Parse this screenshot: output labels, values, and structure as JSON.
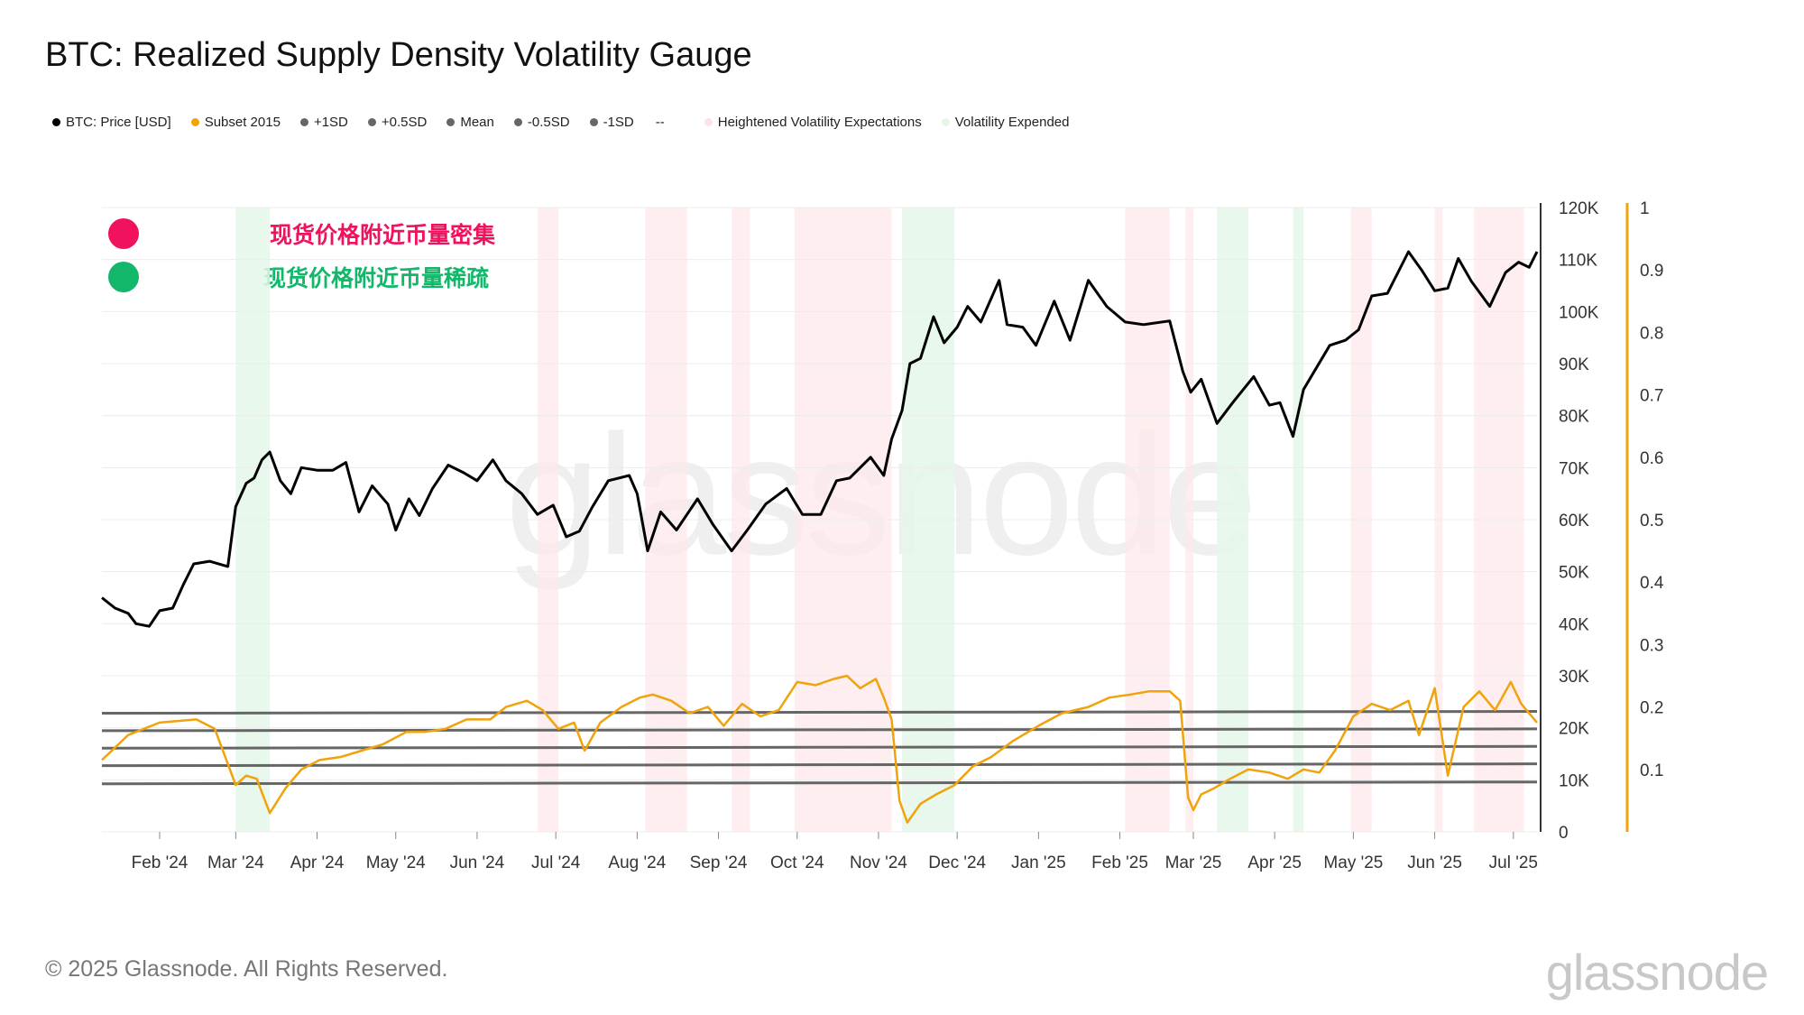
{
  "title": "BTC: Realized Supply Density Volatility Gauge",
  "legend": [
    {
      "label": "BTC: Price [USD]",
      "color": "#000000",
      "marker": "dot"
    },
    {
      "label": "Subset 2015",
      "color": "#f0a30a",
      "marker": "dot"
    },
    {
      "label": "+1SD",
      "color": "#666666",
      "marker": "dot"
    },
    {
      "label": "+0.5SD",
      "color": "#666666",
      "marker": "dot"
    },
    {
      "label": "Mean",
      "color": "#666666",
      "marker": "dot"
    },
    {
      "label": "-0.5SD",
      "color": "#666666",
      "marker": "dot"
    },
    {
      "label": "-1SD",
      "color": "#666666",
      "marker": "dot"
    },
    {
      "label": "--",
      "color": "#333333",
      "marker": "dash"
    },
    {
      "label": "Heightened Volatility Expectations",
      "color": "#fbe3e6",
      "marker": "dot"
    },
    {
      "label": "Volatility Expended",
      "color": "#e3f6e8",
      "marker": "dot"
    }
  ],
  "annotations": [
    {
      "text": "现货价格附近币量密集",
      "color": "#f0125e"
    },
    {
      "text": "现货价格附近币量稀疏",
      "color": "#12b76a"
    }
  ],
  "watermark": "glassnode",
  "footer": "© 2025 Glassnode. All Rights Reserved.",
  "brand": "glassnode",
  "chart_data": {
    "type": "line",
    "x_start": "2024-01-10",
    "x_end": "2025-07-10",
    "x_ticks": [
      "Feb '24",
      "Mar '24",
      "Apr '24",
      "May '24",
      "Jun '24",
      "Jul '24",
      "Aug '24",
      "Sep '24",
      "Oct '24",
      "Nov '24",
      "Dec '24",
      "Jan '25",
      "Feb '25",
      "Mar '25",
      "Apr '25",
      "May '25",
      "Jun '25",
      "Jul '25"
    ],
    "y_left": {
      "label": "BTC: Price [USD]",
      "ticks": [
        "0",
        "10K",
        "20K",
        "30K",
        "40K",
        "50K",
        "60K",
        "70K",
        "80K",
        "90K",
        "100K",
        "110K",
        "120K"
      ],
      "range": [
        0,
        120000
      ]
    },
    "y_right": {
      "label": "Subset 2015",
      "ticks": [
        "0.1",
        "0.2",
        "0.3",
        "0.4",
        "0.5",
        "0.6",
        "0.7",
        "0.8",
        "0.9",
        "1"
      ],
      "range": [
        0,
        1
      ]
    },
    "bands": {
      "+1SD": 0.19,
      "+0.5SD": 0.162,
      "Mean": 0.134,
      "-0.5SD": 0.106,
      "-1SD": 0.077
    },
    "series": [
      {
        "name": "BTC: Price [USD]",
        "dates": [
          "2024-01-10",
          "2024-01-15",
          "2024-01-20",
          "2024-01-23",
          "2024-01-28",
          "2024-02-01",
          "2024-02-06",
          "2024-02-10",
          "2024-02-14",
          "2024-02-20",
          "2024-02-27",
          "2024-03-01",
          "2024-03-05",
          "2024-03-08",
          "2024-03-11",
          "2024-03-14",
          "2024-03-18",
          "2024-03-22",
          "2024-03-26",
          "2024-04-01",
          "2024-04-07",
          "2024-04-12",
          "2024-04-17",
          "2024-04-22",
          "2024-04-28",
          "2024-05-01",
          "2024-05-06",
          "2024-05-10",
          "2024-05-15",
          "2024-05-21",
          "2024-05-27",
          "2024-06-01",
          "2024-06-07",
          "2024-06-12",
          "2024-06-18",
          "2024-06-24",
          "2024-06-30",
          "2024-07-05",
          "2024-07-10",
          "2024-07-15",
          "2024-07-21",
          "2024-07-29",
          "2024-08-01",
          "2024-08-05",
          "2024-08-10",
          "2024-08-16",
          "2024-08-24",
          "2024-08-30",
          "2024-09-06",
          "2024-09-12",
          "2024-09-19",
          "2024-09-27",
          "2024-10-03",
          "2024-10-10",
          "2024-10-16",
          "2024-10-21",
          "2024-10-29",
          "2024-11-03",
          "2024-11-06",
          "2024-11-10",
          "2024-11-13",
          "2024-11-17",
          "2024-11-22",
          "2024-11-26",
          "2024-12-01",
          "2024-12-05",
          "2024-12-10",
          "2024-12-17",
          "2024-12-20",
          "2024-12-26",
          "2024-12-31",
          "2025-01-07",
          "2025-01-13",
          "2025-01-20",
          "2025-01-27",
          "2025-02-03",
          "2025-02-10",
          "2025-02-20",
          "2025-02-25",
          "2025-02-28",
          "2025-03-04",
          "2025-03-10",
          "2025-03-16",
          "2025-03-24",
          "2025-03-30",
          "2025-04-03",
          "2025-04-08",
          "2025-04-12",
          "2025-04-22",
          "2025-04-28",
          "2025-05-03",
          "2025-05-08",
          "2025-05-14",
          "2025-05-22",
          "2025-05-27",
          "2025-06-01",
          "2025-06-06",
          "2025-06-10",
          "2025-06-15",
          "2025-06-22",
          "2025-06-28",
          "2025-07-03",
          "2025-07-07",
          "2025-07-10"
        ],
        "values": [
          45000,
          43000,
          42000,
          40000,
          39500,
          42500,
          43000,
          47500,
          51500,
          52000,
          51000,
          62500,
          67000,
          68000,
          71500,
          73000,
          67500,
          65000,
          70000,
          69500,
          69500,
          71000,
          61500,
          66500,
          63000,
          58000,
          64000,
          60800,
          66000,
          70500,
          69000,
          67500,
          71500,
          67500,
          65000,
          61000,
          62800,
          56700,
          57800,
          62500,
          67500,
          68500,
          65000,
          54000,
          61500,
          58000,
          64000,
          59000,
          54000,
          58000,
          63000,
          66000,
          61000,
          61000,
          67500,
          68000,
          72000,
          68500,
          75500,
          81000,
          90000,
          91000,
          99000,
          94000,
          97000,
          101000,
          98000,
          106000,
          97500,
          97000,
          93500,
          102000,
          94500,
          106000,
          101000,
          98000,
          97500,
          98200,
          88500,
          84500,
          87000,
          78500,
          82500,
          87500,
          82000,
          82500,
          76000,
          85000,
          93500,
          94500,
          96500,
          103000,
          103500,
          111500,
          108000,
          104000,
          104500,
          110200,
          105800,
          101000,
          107500,
          109500,
          108500,
          111500
        ]
      },
      {
        "name": "Subset 2015",
        "dates": [
          "2024-01-10",
          "2024-01-20",
          "2024-02-01",
          "2024-02-15",
          "2024-02-22",
          "2024-03-01",
          "2024-03-05",
          "2024-03-09",
          "2024-03-14",
          "2024-03-20",
          "2024-03-26",
          "2024-04-02",
          "2024-04-10",
          "2024-04-18",
          "2024-04-26",
          "2024-05-05",
          "2024-05-12",
          "2024-05-20",
          "2024-05-28",
          "2024-06-06",
          "2024-06-12",
          "2024-06-20",
          "2024-06-26",
          "2024-07-02",
          "2024-07-08",
          "2024-07-12",
          "2024-07-18",
          "2024-07-26",
          "2024-08-02",
          "2024-08-07",
          "2024-08-14",
          "2024-08-21",
          "2024-08-28",
          "2024-09-03",
          "2024-09-10",
          "2024-09-17",
          "2024-09-24",
          "2024-10-01",
          "2024-10-08",
          "2024-10-15",
          "2024-10-20",
          "2024-10-25",
          "2024-10-31",
          "2024-11-03",
          "2024-11-06",
          "2024-11-09",
          "2024-11-12",
          "2024-11-17",
          "2024-11-23",
          "2024-11-30",
          "2024-12-07",
          "2024-12-14",
          "2024-12-22",
          "2025-01-01",
          "2025-01-10",
          "2025-01-20",
          "2025-01-28",
          "2025-02-05",
          "2025-02-12",
          "2025-02-20",
          "2025-02-24",
          "2025-02-27",
          "2025-03-01",
          "2025-03-04",
          "2025-03-09",
          "2025-03-15",
          "2025-03-22",
          "2025-03-30",
          "2025-04-06",
          "2025-04-12",
          "2025-04-18",
          "2025-04-24",
          "2025-05-01",
          "2025-05-08",
          "2025-05-15",
          "2025-05-22",
          "2025-05-26",
          "2025-06-01",
          "2025-06-06",
          "2025-06-12",
          "2025-06-18",
          "2025-06-24",
          "2025-06-30",
          "2025-07-04",
          "2025-07-10"
        ],
        "values": [
          0.115,
          0.155,
          0.175,
          0.18,
          0.165,
          0.075,
          0.09,
          0.085,
          0.03,
          0.07,
          0.1,
          0.115,
          0.12,
          0.13,
          0.14,
          0.16,
          0.16,
          0.165,
          0.18,
          0.18,
          0.2,
          0.21,
          0.195,
          0.165,
          0.175,
          0.13,
          0.175,
          0.2,
          0.215,
          0.22,
          0.21,
          0.19,
          0.2,
          0.17,
          0.205,
          0.185,
          0.195,
          0.24,
          0.235,
          0.245,
          0.25,
          0.23,
          0.245,
          0.215,
          0.18,
          0.05,
          0.015,
          0.045,
          0.06,
          0.075,
          0.105,
          0.12,
          0.145,
          0.17,
          0.19,
          0.2,
          0.215,
          0.22,
          0.225,
          0.225,
          0.21,
          0.055,
          0.035,
          0.06,
          0.07,
          0.085,
          0.1,
          0.095,
          0.085,
          0.1,
          0.095,
          0.13,
          0.185,
          0.205,
          0.195,
          0.21,
          0.155,
          0.23,
          0.09,
          0.2,
          0.225,
          0.195,
          0.24,
          0.205,
          0.175
        ]
      }
    ],
    "heightened_volatility_periods": [
      [
        "2024-06-24",
        "2024-07-02"
      ],
      [
        "2024-08-04",
        "2024-08-20"
      ],
      [
        "2024-09-06",
        "2024-09-13"
      ],
      [
        "2024-09-30",
        "2024-11-06"
      ],
      [
        "2025-02-03",
        "2025-02-20"
      ],
      [
        "2025-02-26",
        "2025-03-01"
      ],
      [
        "2025-04-30",
        "2025-05-08"
      ],
      [
        "2025-06-01",
        "2025-06-04"
      ],
      [
        "2025-06-16",
        "2025-07-05"
      ]
    ],
    "volatility_expended_periods": [
      [
        "2024-03-01",
        "2024-03-14"
      ],
      [
        "2024-11-10",
        "2024-11-30"
      ],
      [
        "2025-03-10",
        "2025-03-22"
      ],
      [
        "2025-04-08",
        "2025-04-12"
      ]
    ]
  }
}
